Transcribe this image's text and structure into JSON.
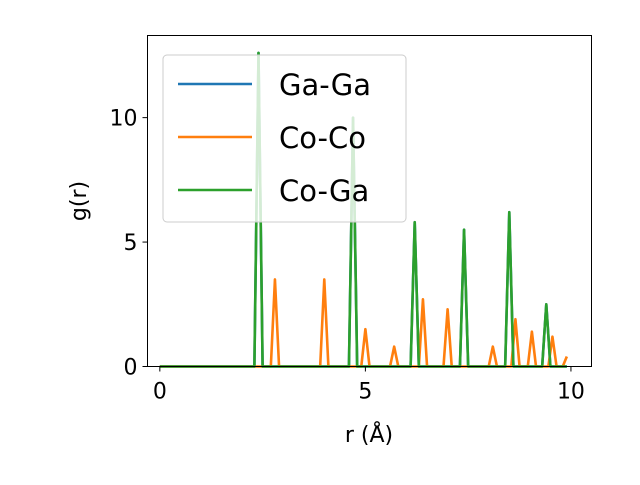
{
  "chart_data": {
    "type": "line",
    "title": "",
    "xlabel": "r (Å)",
    "ylabel": "g(r)",
    "xlim": [
      -0.3,
      10.5
    ],
    "ylim": [
      0,
      13.3
    ],
    "xticks": [
      0,
      5,
      10
    ],
    "yticks": [
      0,
      5,
      10
    ],
    "grid": false,
    "legend_position": "top-left",
    "series": [
      {
        "name": "Ga-Ga",
        "color": "#1f77b4",
        "x": [
          0,
          2.3,
          2.4,
          2.5,
          4.6,
          4.7,
          4.8,
          6.1,
          6.2,
          6.3,
          7.3,
          7.4,
          7.5,
          8.4,
          8.5,
          8.6,
          9.3,
          9.4,
          9.5,
          9.9
        ],
        "y": [
          0,
          0,
          12.6,
          0,
          0,
          10.0,
          0,
          0,
          5.8,
          0,
          0,
          5.5,
          0,
          0,
          6.2,
          0,
          0,
          2.5,
          0,
          0
        ]
      },
      {
        "name": "Co-Co",
        "color": "#ff7f0e",
        "x": [
          0,
          2.7,
          2.8,
          2.9,
          3.9,
          4.0,
          4.1,
          4.9,
          5.0,
          5.1,
          5.6,
          5.7,
          5.8,
          6.3,
          6.4,
          6.5,
          6.9,
          7.0,
          7.1,
          8.0,
          8.1,
          8.2,
          8.55,
          8.65,
          8.75,
          8.95,
          9.05,
          9.15,
          9.45,
          9.55,
          9.65,
          9.8,
          9.9
        ],
        "y": [
          0,
          0,
          3.5,
          0,
          0,
          3.5,
          0,
          0,
          1.5,
          0,
          0,
          0.8,
          0,
          0,
          2.7,
          0,
          0,
          2.3,
          0,
          0,
          0.8,
          0,
          0,
          1.9,
          0,
          0,
          1.4,
          0,
          0,
          1.2,
          0,
          0,
          0.4
        ]
      },
      {
        "name": "Co-Ga",
        "color": "#2ca02c",
        "x": [
          0,
          2.3,
          2.4,
          2.5,
          4.6,
          4.7,
          4.8,
          6.1,
          6.2,
          6.3,
          7.3,
          7.4,
          7.5,
          8.4,
          8.5,
          8.6,
          9.3,
          9.4,
          9.5,
          9.9
        ],
        "y": [
          0,
          0,
          12.6,
          0,
          0,
          10.0,
          0,
          0,
          5.8,
          0,
          0,
          5.5,
          0,
          0,
          6.2,
          0,
          0,
          2.5,
          0,
          0
        ]
      }
    ]
  }
}
